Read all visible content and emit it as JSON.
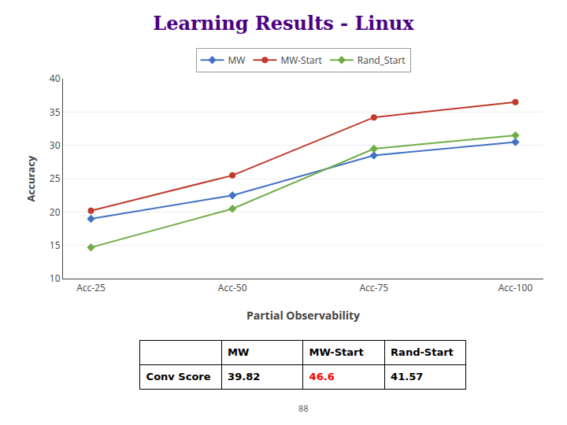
{
  "chart_data": {
    "type": "line",
    "title": "Learning Results - Linux",
    "xlabel": "Partial Observability",
    "ylabel": "Accuracy",
    "categories": [
      "Acc-25",
      "Acc-50",
      "Acc-75",
      "Acc-100"
    ],
    "series": [
      {
        "name": "MW",
        "color": "#4472C4",
        "marker": "diamond",
        "values": [
          19.0,
          22.5,
          28.5,
          30.5
        ]
      },
      {
        "name": "MW-Start",
        "color": "#C0392B",
        "marker": "circle",
        "values": [
          20.2,
          25.5,
          34.2,
          36.5
        ]
      },
      {
        "name": "Rand_Start",
        "color": "#70AD47",
        "marker": "diamond",
        "values": [
          14.7,
          20.5,
          29.5,
          31.5
        ]
      }
    ],
    "ylim": [
      10,
      40
    ],
    "yticks": [
      10,
      15,
      20,
      25,
      30,
      35,
      40
    ],
    "grid": true,
    "legend": "top",
    "table": {
      "headers": [
        "MW",
        "MW-Start",
        "Rand-Start"
      ],
      "row_label": "Conv Score",
      "values": [
        "39.82",
        "46.6",
        "41.57"
      ],
      "value_colors": [
        "black",
        "red",
        "black"
      ]
    },
    "page_number": "88"
  }
}
